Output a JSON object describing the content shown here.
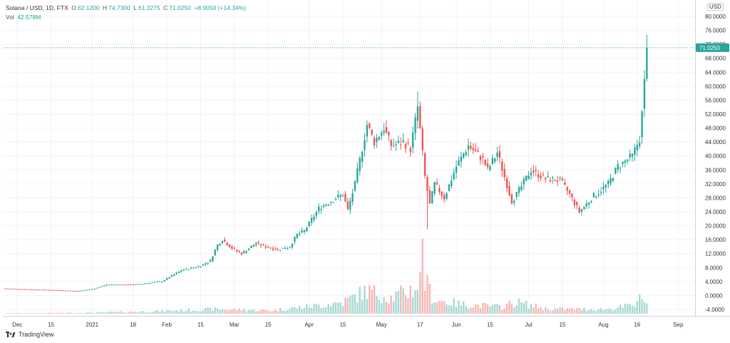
{
  "header": {
    "symbol": "Solana / USD, 1D, FTX",
    "o_label": "O",
    "o": "62.1200",
    "h_label": "H",
    "h": "74.7300",
    "l_label": "L",
    "l": "61.3275",
    "c_label": "C",
    "c": "71.0250",
    "change": "+8.9050 (+14.34%)",
    "vol_label": "Vol",
    "vol": "42.578M"
  },
  "currency": "USD",
  "brand": "TradingView",
  "colors": {
    "up": "#26a69a",
    "down": "#ef5350",
    "grid": "#f0f3fa",
    "crosshair": "#26a69a"
  },
  "chart_data": {
    "type": "candlestick",
    "title": "Solana / USD, 1D, FTX",
    "y_axis": {
      "range": [
        -6,
        82
      ],
      "ticks": [
        -4,
        0,
        4,
        8,
        12,
        16,
        20,
        24,
        28,
        32,
        36,
        40,
        44,
        48,
        52,
        56,
        60,
        64,
        68,
        72,
        76,
        80
      ],
      "tick_labels": [
        "-4.0000",
        "0.0000",
        "4.0000",
        "8.0000",
        "12.0000",
        "16.0000",
        "20.0000",
        "24.0000",
        "28.0000",
        "32.0000",
        "36.0000",
        "40.0000",
        "44.0000",
        "48.0000",
        "52.0000",
        "56.0000",
        "60.0000",
        "64.0000",
        "68.0000",
        "72.0000",
        "76.0000",
        "80.0000"
      ]
    },
    "x_axis": {
      "labels": [
        {
          "day": 5,
          "text": "Dec"
        },
        {
          "day": 19,
          "text": "15"
        },
        {
          "day": 36,
          "text": "2021"
        },
        {
          "day": 53,
          "text": "18"
        },
        {
          "day": 67,
          "text": "Feb"
        },
        {
          "day": 81,
          "text": "15"
        },
        {
          "day": 95,
          "text": "Mar"
        },
        {
          "day": 109,
          "text": "15"
        },
        {
          "day": 126,
          "text": "Apr"
        },
        {
          "day": 140,
          "text": "15"
        },
        {
          "day": 156,
          "text": "May"
        },
        {
          "day": 172,
          "text": "17"
        },
        {
          "day": 187,
          "text": "Jun"
        },
        {
          "day": 201,
          "text": "15"
        },
        {
          "day": 217,
          "text": "Jul"
        },
        {
          "day": 231,
          "text": "15"
        },
        {
          "day": 248,
          "text": "Aug"
        },
        {
          "day": 262,
          "text": "16"
        },
        {
          "day": 279,
          "text": "Sep"
        }
      ],
      "day_range": [
        -1,
        286
      ]
    },
    "last_price": 71.025,
    "last_price_label": "71.0250",
    "series": [
      {
        "name": "Price",
        "keypoints": [
          [
            0,
            2.0
          ],
          [
            18,
            1.6
          ],
          [
            30,
            1.3
          ],
          [
            36,
            1.8
          ],
          [
            42,
            3.1
          ],
          [
            55,
            3.2
          ],
          [
            65,
            4.1
          ],
          [
            73,
            7.2
          ],
          [
            81,
            8.5
          ],
          [
            85,
            10.0
          ],
          [
            88,
            14.5
          ],
          [
            90,
            16.0
          ],
          [
            94,
            13.5
          ],
          [
            98,
            12.0
          ],
          [
            104,
            15.0
          ],
          [
            108,
            14.0
          ],
          [
            113,
            13.2
          ],
          [
            118,
            14.0
          ],
          [
            121,
            17.5
          ],
          [
            124,
            18.5
          ],
          [
            130,
            25.0
          ],
          [
            136,
            27.5
          ],
          [
            140,
            29.0
          ],
          [
            142,
            24.5
          ],
          [
            145,
            32.0
          ],
          [
            150,
            49.0
          ],
          [
            153,
            44.0
          ],
          [
            157,
            48.0
          ],
          [
            160,
            43.0
          ],
          [
            165,
            44.0
          ],
          [
            168,
            42.0
          ],
          [
            171,
            54.0
          ],
          [
            174,
            34.0
          ],
          [
            176,
            26.0
          ],
          [
            178,
            32.0
          ],
          [
            182,
            28.0
          ],
          [
            187,
            37.0
          ],
          [
            192,
            43.0
          ],
          [
            198,
            39.0
          ],
          [
            200,
            36.0
          ],
          [
            204,
            41.0
          ],
          [
            207,
            34.0
          ],
          [
            210,
            27.0
          ],
          [
            212,
            29.0
          ],
          [
            218,
            36.0
          ],
          [
            224,
            33.5
          ],
          [
            230,
            33.0
          ],
          [
            234,
            29.0
          ],
          [
            238,
            24.0
          ],
          [
            244,
            28.5
          ],
          [
            250,
            32.0
          ],
          [
            254,
            37.0
          ],
          [
            257,
            38.5
          ],
          [
            260,
            40.0
          ],
          [
            263,
            45.0
          ],
          [
            264,
            52.0
          ],
          [
            265,
            62.12
          ],
          [
            266,
            71.025
          ]
        ]
      },
      {
        "name": "Volume",
        "keypoints": [
          [
            0,
            0.1
          ],
          [
            30,
            0.2
          ],
          [
            60,
            0.5
          ],
          [
            88,
            1.0
          ],
          [
            110,
            0.7
          ],
          [
            130,
            1.8
          ],
          [
            140,
            2.5
          ],
          [
            150,
            5.0
          ],
          [
            160,
            3.5
          ],
          [
            170,
            5.5
          ],
          [
            173,
            8.0
          ],
          [
            178,
            3.0
          ],
          [
            190,
            2.0
          ],
          [
            205,
            1.5
          ],
          [
            212,
            2.5
          ],
          [
            225,
            1.0
          ],
          [
            250,
            1.0
          ],
          [
            262,
            2.0
          ],
          [
            264,
            5.5
          ],
          [
            266,
            3.0
          ]
        ]
      }
    ],
    "volume_scale": {
      "max_value": 16.3
    }
  }
}
